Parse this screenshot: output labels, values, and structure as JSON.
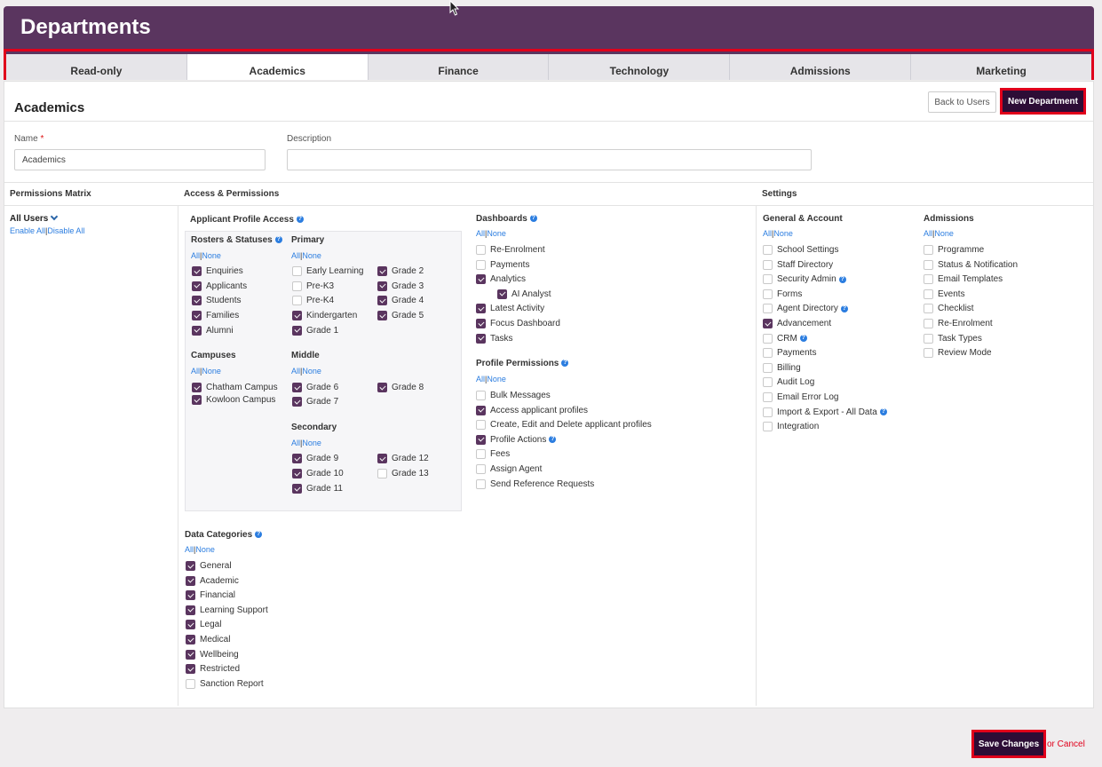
{
  "header": {
    "title": "Departments"
  },
  "tabs": [
    "Read-only",
    "Academics",
    "Finance",
    "Technology",
    "Admissions",
    "Marketing"
  ],
  "active_tab": "Academics",
  "panel": {
    "title": "Academics",
    "back_label": "Back to Users",
    "new_label": "New Department"
  },
  "form": {
    "name_label": "Name",
    "name_required": "*",
    "name_value": "Academics",
    "desc_label": "Description",
    "desc_value": ""
  },
  "columns": {
    "matrix": "Permissions Matrix",
    "access": "Access & Permissions",
    "settings": "Settings"
  },
  "matrix": {
    "all_users": "All Users",
    "enable_all": "Enable All",
    "disable_all": "Disable All"
  },
  "links": {
    "all": "All",
    "none": "None",
    "sep": "|"
  },
  "applicant_access": {
    "title": "Applicant Profile Access"
  },
  "rosters": {
    "title": "Rosters & Statuses",
    "items": [
      {
        "label": "Enquiries",
        "checked": true
      },
      {
        "label": "Applicants",
        "checked": true
      },
      {
        "label": "Students",
        "checked": true
      },
      {
        "label": "Families",
        "checked": true
      },
      {
        "label": "Alumni",
        "checked": true
      }
    ]
  },
  "primary": {
    "title": "Primary",
    "col1": [
      {
        "label": "Early Learning",
        "checked": false
      },
      {
        "label": "Pre-K3",
        "checked": false
      },
      {
        "label": "Pre-K4",
        "checked": false
      },
      {
        "label": "Kindergarten",
        "checked": true
      },
      {
        "label": "Grade 1",
        "checked": true
      }
    ],
    "col2": [
      {
        "label": "Grade 2",
        "checked": true
      },
      {
        "label": "Grade 3",
        "checked": true
      },
      {
        "label": "Grade 4",
        "checked": true
      },
      {
        "label": "Grade 5",
        "checked": true
      }
    ]
  },
  "campuses": {
    "title": "Campuses",
    "items": [
      {
        "label": "Chatham Campus",
        "checked": true
      },
      {
        "label": "Kowloon Campus",
        "checked": true
      }
    ]
  },
  "middle": {
    "title": "Middle",
    "col1": [
      {
        "label": "Grade 6",
        "checked": true
      },
      {
        "label": "Grade 7",
        "checked": true
      }
    ],
    "col2": [
      {
        "label": "Grade 8",
        "checked": true
      }
    ]
  },
  "secondary": {
    "title": "Secondary",
    "col1": [
      {
        "label": "Grade 9",
        "checked": true
      },
      {
        "label": "Grade 10",
        "checked": true
      },
      {
        "label": "Grade 11",
        "checked": true
      }
    ],
    "col2": [
      {
        "label": "Grade 12",
        "checked": true
      },
      {
        "label": "Grade 13",
        "checked": false
      }
    ]
  },
  "data_categories": {
    "title": "Data Categories",
    "items": [
      {
        "label": "General",
        "checked": true
      },
      {
        "label": "Academic",
        "checked": true
      },
      {
        "label": "Financial",
        "checked": true
      },
      {
        "label": "Learning Support",
        "checked": true
      },
      {
        "label": "Legal",
        "checked": true
      },
      {
        "label": "Medical",
        "checked": true
      },
      {
        "label": "Wellbeing",
        "checked": true
      },
      {
        "label": "Restricted",
        "checked": true
      },
      {
        "label": "Sanction Report",
        "checked": false
      }
    ]
  },
  "dashboards": {
    "title": "Dashboards",
    "items": [
      {
        "label": "Re-Enrolment",
        "checked": false
      },
      {
        "label": "Payments",
        "checked": false
      },
      {
        "label": "Analytics",
        "checked": true
      },
      {
        "label": "AI Analyst",
        "checked": true,
        "indent": true
      },
      {
        "label": "Latest Activity",
        "checked": true
      },
      {
        "label": "Focus Dashboard",
        "checked": true
      },
      {
        "label": "Tasks",
        "checked": true
      }
    ]
  },
  "profile_permissions": {
    "title": "Profile Permissions",
    "items": [
      {
        "label": "Bulk Messages",
        "checked": false
      },
      {
        "label": "Access applicant profiles",
        "checked": true
      },
      {
        "label": "Create, Edit and Delete applicant profiles",
        "checked": false
      },
      {
        "label": "Profile Actions",
        "checked": true,
        "help": true
      },
      {
        "label": "Fees",
        "checked": false
      },
      {
        "label": "Assign Agent",
        "checked": false
      },
      {
        "label": "Send Reference Requests",
        "checked": false
      }
    ]
  },
  "general_account": {
    "title": "General & Account",
    "items": [
      {
        "label": "School Settings",
        "checked": false
      },
      {
        "label": "Staff Directory",
        "checked": false
      },
      {
        "label": "Security Admin",
        "checked": false,
        "help": true
      },
      {
        "label": "Forms",
        "checked": false
      },
      {
        "label": "Agent Directory",
        "checked": false,
        "help": true
      },
      {
        "label": "Advancement",
        "checked": true
      },
      {
        "label": "CRM",
        "checked": false,
        "help": true
      },
      {
        "label": "Payments",
        "checked": false
      },
      {
        "label": "Billing",
        "checked": false
      },
      {
        "label": "Audit Log",
        "checked": false
      },
      {
        "label": "Email Error Log",
        "checked": false
      },
      {
        "label": "Import & Export - All Data",
        "checked": false,
        "help": true
      },
      {
        "label": "Integration",
        "checked": false
      }
    ]
  },
  "admissions": {
    "title": "Admissions",
    "items": [
      {
        "label": "Programme",
        "checked": false
      },
      {
        "label": "Status & Notification",
        "checked": false
      },
      {
        "label": "Email Templates",
        "checked": false
      },
      {
        "label": "Events",
        "checked": false
      },
      {
        "label": "Checklist",
        "checked": false
      },
      {
        "label": "Re-Enrolment",
        "checked": false
      },
      {
        "label": "Task Types",
        "checked": false
      },
      {
        "label": "Review Mode",
        "checked": false
      }
    ]
  },
  "footer": {
    "save_label": "Save Changes",
    "or_cancel": "or Cancel"
  },
  "colors": {
    "brand": "#5a355f",
    "dark_button": "#2d0d36",
    "highlight": "#e0001b",
    "link": "#2b7de0"
  }
}
